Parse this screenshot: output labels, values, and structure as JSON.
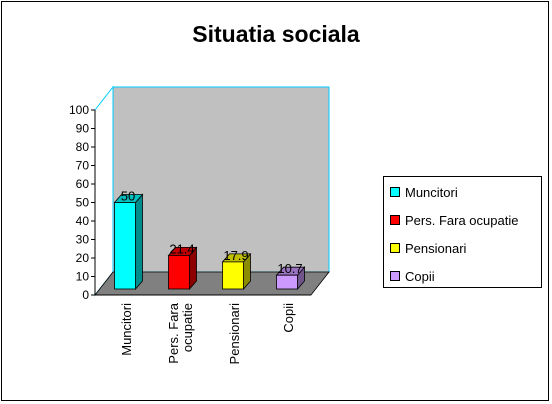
{
  "chart_data": {
    "type": "bar",
    "title": "Situatia sociala",
    "categories": [
      "Muncitori",
      "Pers. Fara ocupatie",
      "Pensionari",
      "Copii"
    ],
    "tick_labels": [
      [
        "Muncitori"
      ],
      [
        "Pers. Fara",
        "ocupatie"
      ],
      [
        "Pensionari"
      ],
      [
        "Copii"
      ]
    ],
    "values": [
      50,
      21.4,
      17.9,
      10.7
    ],
    "value_labels": [
      "50",
      "21.4",
      "17.9",
      "10.7"
    ],
    "ylim": [
      0,
      100
    ],
    "yticks": [
      "0",
      "10",
      "20",
      "30",
      "40",
      "50",
      "60",
      "70",
      "80",
      "90",
      "100"
    ],
    "xlabel": "",
    "ylabel": "",
    "grid": false,
    "legend_position": "right",
    "colors": [
      "#00FFFF",
      "#FF0000",
      "#FFFF00",
      "#CC99FF"
    ],
    "wall_color": "#C0C0C0",
    "floor_color": "#808080",
    "wall_edge_color": "#00CCFF"
  }
}
